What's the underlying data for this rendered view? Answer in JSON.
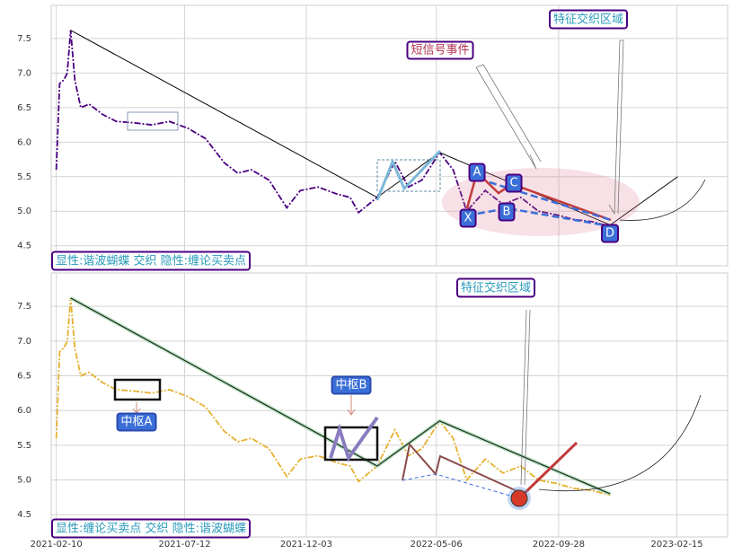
{
  "chart_data": [
    {
      "type": "line",
      "xlim": [
        "2021-02-04",
        "2023-04-16"
      ],
      "ylim": [
        4.21,
        7.98
      ],
      "yticks": [
        4.5,
        {
          "value": 5,
          "label": "5.0"
        },
        5.5,
        {
          "value": 6,
          "label": "6.0"
        },
        6.5,
        {
          "value": 7,
          "label": "7.0"
        },
        7.5
      ],
      "grid": true,
      "series": [
        {
          "color": "#4b0082",
          "x": [
            "2021-02-10",
            "2021-02-14",
            "2021-02-19",
            "2021-02-23",
            "2021-02-27",
            "2021-03-04",
            "2021-03-11",
            "2021-03-21",
            "2021-04-06",
            "2021-04-22",
            "2021-05-13",
            "2021-06-03",
            "2021-06-24",
            "2021-07-16",
            "2021-08-06",
            "2021-08-28",
            "2021-09-13",
            "2021-09-29",
            "2021-10-20",
            "2021-11-10",
            "2021-11-26",
            "2021-12-17",
            "2022-01-08",
            "2022-01-24",
            "2022-02-03",
            "2022-02-25",
            "2022-03-18",
            "2022-04-03",
            "2022-04-19",
            "2022-05-10",
            "2022-05-26",
            "2022-06-11",
            "2022-07-03",
            "2022-07-24",
            "2022-08-14",
            "2022-09-04",
            "2022-09-25",
            "2022-10-16",
            "2022-11-06",
            "2022-11-28"
          ],
          "values": [
            5.6,
            6.85,
            6.9,
            7.0,
            7.62,
            6.9,
            6.5,
            6.55,
            6.4,
            6.3,
            6.28,
            6.25,
            6.3,
            6.2,
            6.05,
            5.7,
            5.55,
            5.6,
            5.45,
            5.05,
            5.3,
            5.35,
            5.25,
            5.2,
            4.98,
            5.2,
            5.72,
            5.35,
            5.45,
            5.85,
            5.6,
            5.0,
            5.3,
            5.1,
            5.2,
            5.0,
            4.95,
            4.88,
            4.85,
            4.78
          ]
        },
        {
          "color": "#000000",
          "x": [
            "2021-02-27",
            "2022-02-25",
            "2022-05-10",
            "2022-11-28",
            "2023-02-16"
          ],
          "values": [
            7.62,
            5.2,
            5.85,
            4.8,
            5.5
          ]
        }
      ],
      "annotations": [
        "特征交织区域",
        "短信号事件",
        "A",
        "B",
        "C",
        "D",
        "X",
        "显性:谐波蝴蝶 交织 隐性:缠论买卖点"
      ]
    },
    {
      "type": "line",
      "xlim": [
        "2021-02-04",
        "2023-04-16"
      ],
      "ylim": [
        4.18,
        7.98
      ],
      "yticks": [
        4.5,
        {
          "value": 5,
          "label": "5.0"
        },
        5.5,
        {
          "value": 6,
          "label": "6.0"
        },
        6.5,
        {
          "value": 7,
          "label": "7.0"
        },
        7.5
      ],
      "xticks": [
        "2021-02-10",
        "2021-07-12",
        "2021-12-03",
        "2022-05-06",
        "2022-09-28",
        "2023-02-15"
      ],
      "grid": true,
      "series": [
        {
          "color": "#e6b030",
          "x": [
            "2021-02-10",
            "2021-02-14",
            "2021-02-19",
            "2021-02-23",
            "2021-02-27",
            "2021-03-04",
            "2021-03-11",
            "2021-03-21",
            "2021-04-06",
            "2021-04-22",
            "2021-05-13",
            "2021-06-03",
            "2021-06-24",
            "2021-07-16",
            "2021-08-06",
            "2021-08-28",
            "2021-09-13",
            "2021-09-29",
            "2021-10-20",
            "2021-11-10",
            "2021-11-26",
            "2021-12-17",
            "2022-01-08",
            "2022-01-24",
            "2022-02-03",
            "2022-02-25",
            "2022-03-18",
            "2022-04-03",
            "2022-04-19",
            "2022-05-10",
            "2022-05-26",
            "2022-06-11",
            "2022-07-03",
            "2022-07-24",
            "2022-08-14",
            "2022-09-04",
            "2022-09-25",
            "2022-10-16",
            "2022-11-06",
            "2022-11-28"
          ],
          "values": [
            5.6,
            6.85,
            6.9,
            7.0,
            7.62,
            6.9,
            6.5,
            6.55,
            6.4,
            6.3,
            6.28,
            6.25,
            6.3,
            6.2,
            6.05,
            5.7,
            5.55,
            5.6,
            5.45,
            5.05,
            5.3,
            5.35,
            5.25,
            5.2,
            4.98,
            5.2,
            5.72,
            5.35,
            5.45,
            5.85,
            5.6,
            5.0,
            5.3,
            5.1,
            5.2,
            5.0,
            4.95,
            4.88,
            4.85,
            4.78
          ]
        },
        {
          "color": "#1a2a1a",
          "x": [
            "2021-02-27",
            "2022-02-25",
            "2022-05-10",
            "2022-11-28"
          ],
          "values": [
            7.62,
            5.2,
            5.85,
            4.8
          ]
        }
      ],
      "annotations": [
        "特征交织区域",
        "中枢A",
        "中枢B",
        "显性:缠论买卖点 交织 隐性:谐波蝴蝶"
      ]
    }
  ]
}
